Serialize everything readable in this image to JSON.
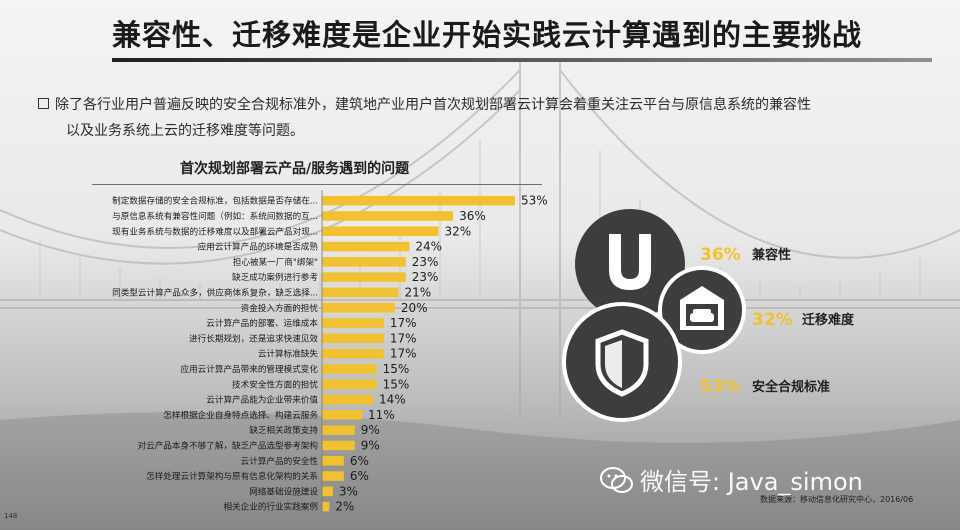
{
  "header": {
    "title": "兼容性、迁移难度是企业开始实践云计算遇到的主要挑战"
  },
  "summary": {
    "line1": "除了各行业用户普遍反映的安全合规标准外，建筑地产业用户首次规划部署云计算会着重关注云平台与原信息系统的兼容性",
    "line2": "以及业务系统上云的迁移难度等问题。"
  },
  "colors": {
    "bar": "#f2c12e",
    "circle": "#3d3d3d",
    "accent": "#f2c12e"
  },
  "chart_data": {
    "type": "bar",
    "orientation": "horizontal",
    "title": "首次规划部署云产品/服务遇到的问题",
    "unit": "%",
    "categories": [
      "制定数据存储的安全合规标准，包括数据是否存储在...",
      "与原信息系统有兼容性问题（例如：系统间数据的互...",
      "现有业务系统与数据的迁移难度以及部署云产品对现...",
      "应用云计算产品的环境是否成熟",
      "担心被某一厂商\"绑架\"",
      "缺乏成功案例进行参考",
      "同类型云计算产品众多，供应商体系复杂，缺乏选择...",
      "资金投入方面的担忧",
      "云计算产品的部署、运维成本",
      "进行长期规划，还是追求快速见效",
      "云计算标准缺失",
      "应用云计算产品带来的管理模式变化",
      "技术安全性方面的担忧",
      "云计算产品能为企业带来价值",
      "怎样根据企业自身特点选择、构建云服务",
      "缺乏相关政策支持",
      "对云产品本身不够了解，缺乏产品选型参考架构",
      "云计算产品的安全性",
      "怎样处理云计算架构与原有信息化架构的关系",
      "网络基础设施建设",
      "相关企业的行业实践案例"
    ],
    "values": [
      53,
      36,
      32,
      24,
      23,
      23,
      21,
      20,
      17,
      17,
      17,
      15,
      15,
      14,
      11,
      9,
      9,
      6,
      6,
      3,
      2
    ],
    "xlim": [
      0,
      60
    ]
  },
  "highlights": [
    {
      "pct": "36%",
      "label": "兼容性",
      "icon": "magnet-icon"
    },
    {
      "pct": "32%",
      "label": "迁移难度",
      "icon": "car-garage-icon"
    },
    {
      "pct": "53%",
      "label": "安全合规标准",
      "icon": "shield-icon"
    }
  ],
  "watermark": "微信号: Java_simon",
  "source": "数据来源：移动信息化研究中心，2016/06",
  "page_number": "148"
}
